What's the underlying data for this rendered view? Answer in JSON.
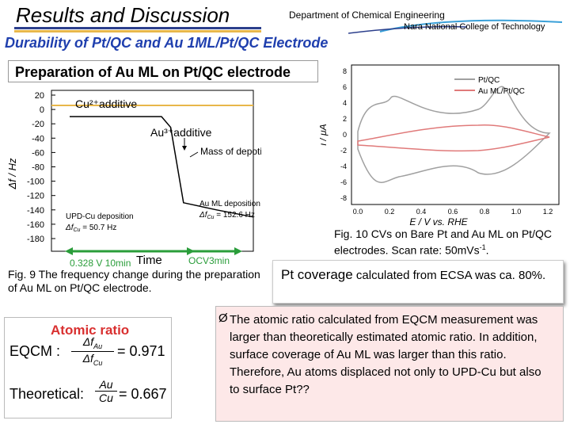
{
  "header": {
    "title": "Results and Discussion",
    "department": "Department of Chemical Engineering",
    "college": "Nara National College of Technology",
    "accent_colors": [
      "#2c3f8c",
      "#e8b74a",
      "#3aa0d8"
    ]
  },
  "subtitle": "Durability of Pt/QC and Au 1ML/Pt/QC Electrode",
  "prep_title": "Preparation of Au ML on Pt/QC electrode",
  "fig9": {
    "caption": "Fig. 9 The frequency change during the preparation of Au ML on Pt/QC electrode.",
    "chart_data": {
      "type": "line",
      "ylabel": "Δf / Hz",
      "xlabel": "Time",
      "yticks": [
        "20",
        "0",
        "-20",
        "-40",
        "-60",
        "-80",
        "-100",
        "-120",
        "-140",
        "-160",
        "-180"
      ],
      "ylim": [
        -180,
        20
      ],
      "annotations": {
        "cu_additive": "Cu²⁺additive",
        "au_additive": "Au³⁺additive",
        "mass": "Mass of depotion",
        "upd_label": "UPD-Cu deposition",
        "upd_value": "Δf",
        "upd_sub": "Cu",
        "upd_eq": " = 50.7 Hz",
        "au_label": "Au ML deposition",
        "au_value": "Δf",
        "au_sub": "Cu",
        "au_eq": " = 152.6 Hz",
        "step1": "0.328 V 10min",
        "step2": "OCV3min"
      },
      "series": [
        {
          "values_t": [
            0,
            0.05,
            0.3,
            0.5,
            0.55,
            0.62,
            0.8,
            1.0
          ],
          "values_f": [
            -10,
            -10,
            -10,
            -10,
            -25,
            -130,
            -140,
            -150
          ]
        }
      ]
    }
  },
  "fig10": {
    "caption_pre": "Fig. 10 CVs on Bare Pt and Au ML on Pt/QC electrodes. Scan rate: 50mVs",
    "caption_sup": "-1",
    "caption_post": ".",
    "chart_data": {
      "type": "line",
      "xlabel": "E / V vs. RHE",
      "ylabel": "i / μA",
      "xticks": [
        "0.0",
        "0.2",
        "0.4",
        "0.6",
        "0.8",
        "1.0",
        "1.2"
      ],
      "yticks": [
        "8",
        "6",
        "4",
        "2",
        "0",
        "-2",
        "-4",
        "-6",
        "-8"
      ],
      "xlim": [
        0,
        1.25
      ],
      "ylim": [
        -8,
        8
      ],
      "series": [
        {
          "name": "Pt/QC",
          "color": "#a0a0a0"
        },
        {
          "name": "Au ML/Pt/QC",
          "color": "#e07a7a"
        }
      ]
    }
  },
  "coverage": {
    "lead": "Pt coverage",
    "rest": " calculated from ECSA was ca. 80%."
  },
  "ratio": {
    "title": "Atomic ratio",
    "eqcm_label": "EQCM :",
    "eqcm_value": "= 0.971",
    "theo_label": "Theoretical:",
    "theo_value": "= 0.667",
    "frac_num": "Δf",
    "frac_num_sub": "Au",
    "frac_den": "Δf",
    "frac_den_sub": "Cu",
    "au": "Au",
    "cu": "Cu"
  },
  "bullet": {
    "mark": "Ø",
    "text": "The atomic ratio calculated from EQCM measurement was larger than theoretically estimated atomic ratio. In addition, surface coverage of Au ML was larger than this ratio. Therefore, Au atoms displaced not only to UPD-Cu but also to surface Pt??"
  }
}
